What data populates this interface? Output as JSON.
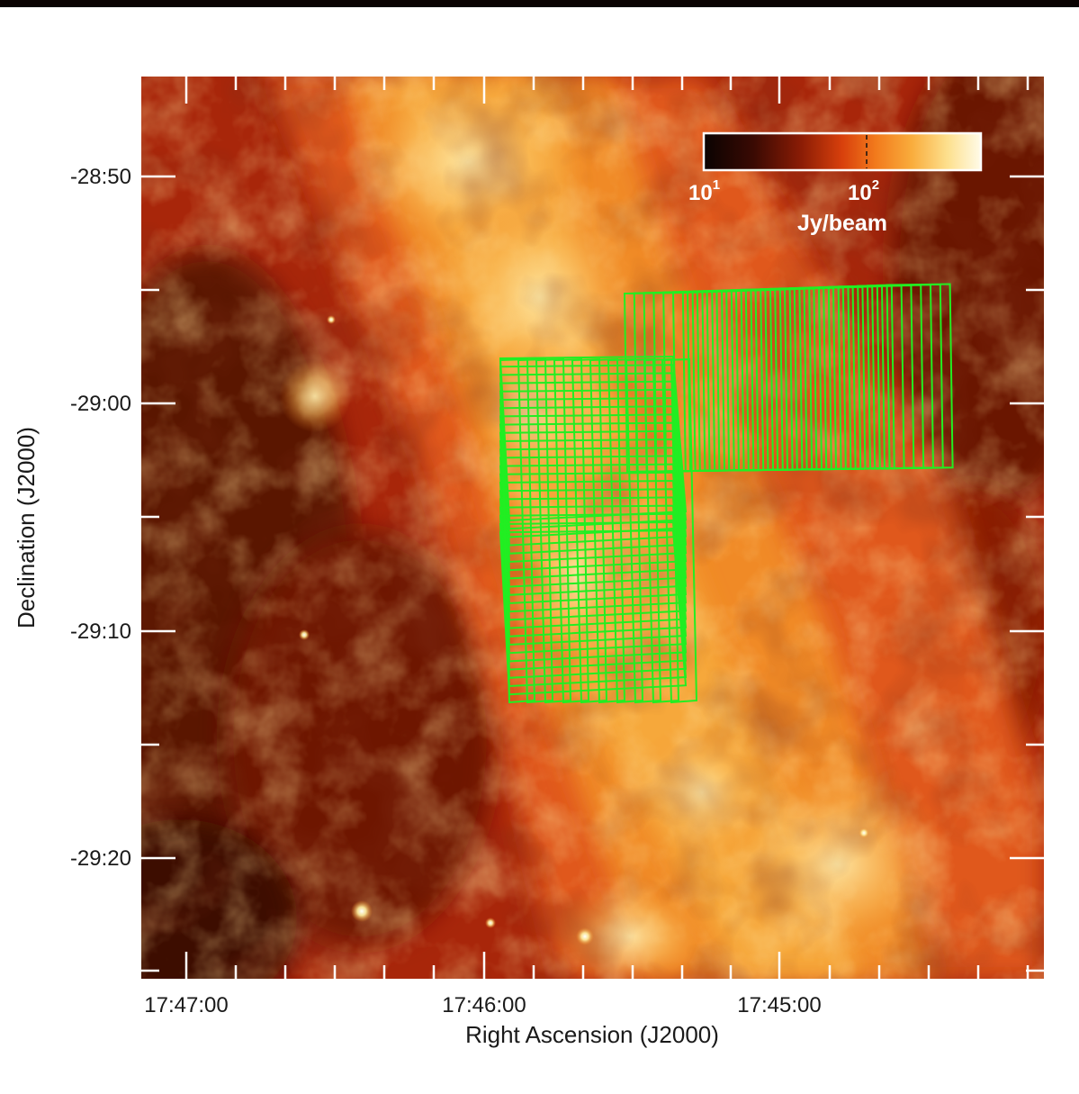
{
  "figure": {
    "xlabel": "Right Ascension (J2000)",
    "ylabel": "Declination (J2000)",
    "x_tick_labels": [
      "17:47:00",
      "17:46:00",
      "17:45:00"
    ],
    "y_tick_labels": [
      "-28:50",
      "-29:00",
      "-29:10",
      "-29:20"
    ],
    "background_colormap": [
      "#0a0302",
      "#3a0a03",
      "#7a1804",
      "#b8300a",
      "#e05a10",
      "#f5902a",
      "#fbc060",
      "#fff4c8"
    ]
  },
  "colorbar": {
    "tick_labels": [
      {
        "base": "10",
        "exp": "1"
      },
      {
        "base": "10",
        "exp": "2"
      }
    ],
    "unit": "Jy/beam",
    "scale": "log"
  },
  "overlay": {
    "color": "#22ee22"
  }
}
